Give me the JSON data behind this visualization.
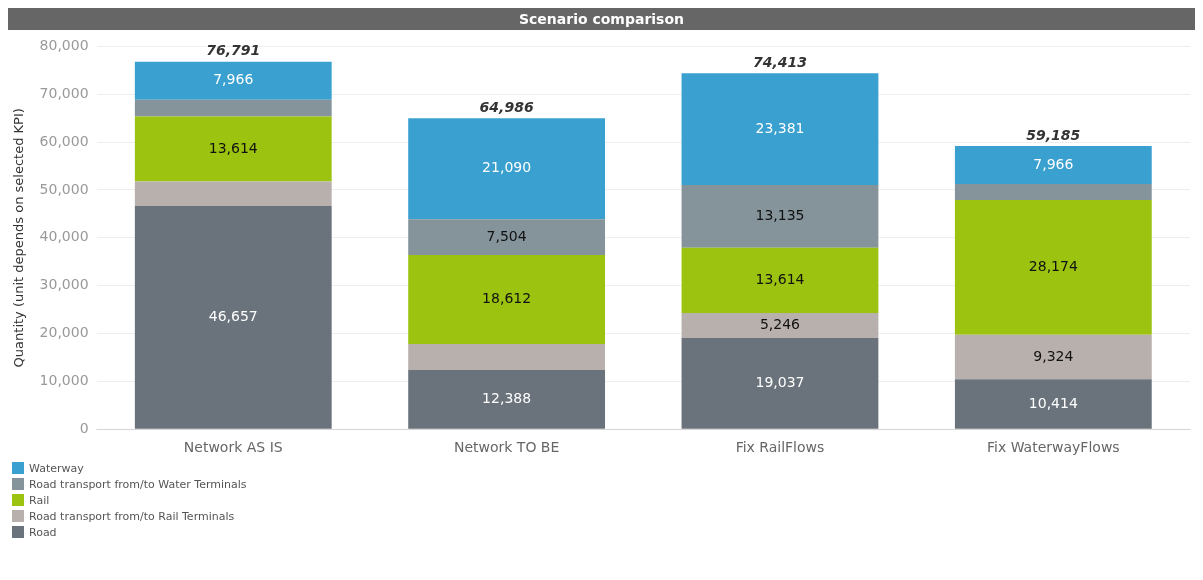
{
  "chart_data": {
    "type": "bar",
    "title": "Scenario comparison",
    "ylabel": "Quantity (unit depends on selected KPI)",
    "categories": [
      "Network AS IS",
      "Network TO BE",
      "Fix RailFlows",
      "Fix WaterwayFlows"
    ],
    "stacked": true,
    "ylim": [
      0,
      80000
    ],
    "yticks": [
      0,
      {
        "value": 10000,
        "label": "10,000"
      },
      {
        "value": 20000,
        "label": "20,000"
      },
      {
        "value": 30000,
        "label": "30,000"
      },
      {
        "value": 40000,
        "label": "40,000"
      },
      {
        "value": 50000,
        "label": "50,000"
      },
      {
        "value": 60000,
        "label": "60,000"
      },
      {
        "value": 70000,
        "label": "70,000"
      },
      {
        "value": 80000,
        "label": "80,000"
      }
    ],
    "grid": "y",
    "legend": "bottom",
    "series": [
      {
        "name": "Road",
        "color": "#6a737b",
        "values": [
          46657,
          12388,
          19037,
          10414
        ],
        "value_labels": [
          "46,657",
          "12,388",
          "19,037",
          "10,414"
        ]
      },
      {
        "name": "Road transport from/to Rail Terminals",
        "color": "#b8b0ac",
        "values": [
          5104,
          5392,
          5246,
          9324
        ],
        "value_labels": [
          null,
          null,
          "5,246",
          "9,324"
        ]
      },
      {
        "name": "Rail",
        "color": "#9bc30f",
        "values": [
          13614,
          18612,
          13614,
          28174
        ],
        "value_labels": [
          "13,614",
          "18,612",
          "13,614",
          "28,174"
        ]
      },
      {
        "name": "Road transport from/to Water Terminals",
        "color": "#85939b",
        "values": [
          3450,
          7504,
          13135,
          3307
        ],
        "value_labels": [
          null,
          "7,504",
          "13,135",
          null
        ]
      },
      {
        "name": "Waterway",
        "color": "#3aa0d0",
        "values": [
          7966,
          21090,
          23381,
          7966
        ],
        "value_labels": [
          "7,966",
          "21,090",
          "23,381",
          "7,966"
        ]
      }
    ],
    "totals": [
      "76,791",
      "64,986",
      "74,413",
      "59,185"
    ]
  }
}
